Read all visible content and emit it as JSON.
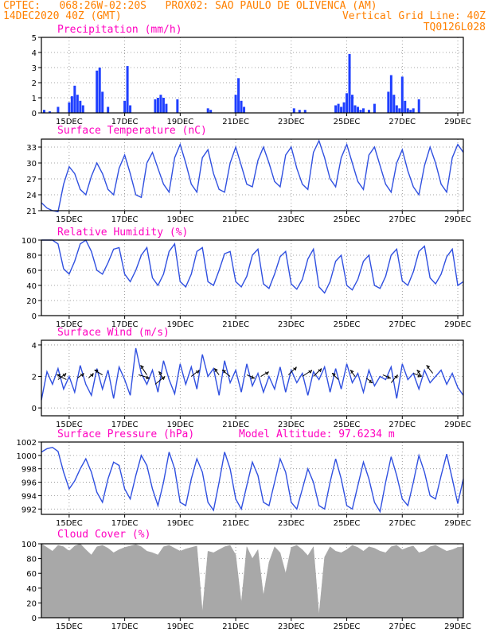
{
  "header": {
    "line1_left": "CPTEC:   068:26W-02:20S   PROX02: SAO PAULO DE OLIVENCA (AM)",
    "line2_left": "14DEC2020 40Z (GMT)",
    "line2_right": "Vertical Grid Line: 40Z",
    "line3_right": "TQ0126L028"
  },
  "x_ticks": [
    "15DEC",
    "17DEC",
    "19DEC",
    "21DEC",
    "23DEC",
    "25DEC",
    "27DEC",
    "29DEC"
  ],
  "colors": {
    "line": "#3050e0",
    "bar": "#1f3fff",
    "cloud": "#a8a8a8",
    "title": "#ff00c0",
    "header": "#ff8000",
    "grid": "#888888",
    "vector": "#000000"
  },
  "chart_data": [
    {
      "id": "precip",
      "type": "bar",
      "title": "Precipitation (mm/h)",
      "ylim": [
        0,
        5
      ],
      "yticks": [
        0,
        1,
        2,
        3,
        4,
        5
      ],
      "x": [
        0.1,
        0.3,
        0.6,
        1.0,
        1.1,
        1.2,
        1.3,
        1.4,
        1.5,
        2.0,
        2.1,
        2.2,
        2.4,
        3.0,
        3.1,
        3.2,
        4.1,
        4.2,
        4.3,
        4.4,
        4.5,
        4.9,
        6.0,
        6.1,
        7.0,
        7.1,
        7.2,
        7.3,
        9.1,
        9.3,
        9.5,
        10.6,
        10.7,
        10.8,
        10.9,
        11.0,
        11.1,
        11.2,
        11.3,
        11.4,
        11.5,
        11.6,
        11.8,
        12.0,
        12.5,
        12.6,
        12.7,
        12.8,
        12.9,
        13.0,
        13.1,
        13.2,
        13.3,
        13.4,
        13.6
      ],
      "values": [
        0.2,
        0.1,
        0.4,
        0.7,
        1.1,
        1.8,
        1.2,
        0.8,
        0.5,
        2.8,
        3.0,
        1.4,
        0.4,
        0.8,
        3.1,
        0.5,
        0.9,
        1.0,
        1.2,
        1.0,
        0.6,
        0.9,
        0.3,
        0.2,
        1.2,
        2.3,
        0.8,
        0.4,
        0.3,
        0.2,
        0.2,
        0.5,
        0.6,
        0.4,
        0.7,
        1.3,
        3.9,
        1.2,
        0.5,
        0.4,
        0.2,
        0.3,
        0.2,
        0.6,
        1.4,
        2.5,
        1.2,
        0.5,
        0.3,
        2.4,
        0.8,
        0.3,
        0.2,
        0.3,
        0.9
      ]
    },
    {
      "id": "temp",
      "type": "line",
      "title": "Surface Temperature (nC)",
      "ylim": [
        21,
        34.5
      ],
      "yticks": [
        21,
        24,
        27,
        30,
        33
      ],
      "x": [
        0,
        0.2,
        0.4,
        0.6,
        0.8,
        1.0,
        1.2,
        1.4,
        1.6,
        1.8,
        2.0,
        2.2,
        2.4,
        2.6,
        2.8,
        3.0,
        3.2,
        3.4,
        3.6,
        3.8,
        4.0,
        4.2,
        4.4,
        4.6,
        4.8,
        5.0,
        5.2,
        5.4,
        5.6,
        5.8,
        6.0,
        6.2,
        6.4,
        6.6,
        6.8,
        7.0,
        7.2,
        7.4,
        7.6,
        7.8,
        8.0,
        8.2,
        8.4,
        8.6,
        8.8,
        9.0,
        9.2,
        9.4,
        9.6,
        9.8,
        10.0,
        10.2,
        10.4,
        10.6,
        10.8,
        11.0,
        11.2,
        11.4,
        11.6,
        11.8,
        12.0,
        12.2,
        12.4,
        12.6,
        12.8,
        13.0,
        13.2,
        13.4,
        13.6,
        13.8,
        14.0,
        14.2,
        14.4,
        14.6,
        14.8,
        15.0,
        15.2
      ],
      "values": [
        22.5,
        21.5,
        21.0,
        20.8,
        26.0,
        29.3,
        28.0,
        25.0,
        24.0,
        27.5,
        30.0,
        28.0,
        25.0,
        24.0,
        29.0,
        31.5,
        28.0,
        24.0,
        23.5,
        30.0,
        32.0,
        29.0,
        26.0,
        24.5,
        31.0,
        33.5,
        30.0,
        26.0,
        24.5,
        31.0,
        32.5,
        28.0,
        25.0,
        24.5,
        30.0,
        33.0,
        29.5,
        26.0,
        25.5,
        30.5,
        33.0,
        30.0,
        26.5,
        25.5,
        31.5,
        33.0,
        29.0,
        26.0,
        25.0,
        32.0,
        34.2,
        31.0,
        27.0,
        25.5,
        31.0,
        33.5,
        30.0,
        26.5,
        25.0,
        31.5,
        33.0,
        29.5,
        26.0,
        24.5,
        30.0,
        32.5,
        28.5,
        25.5,
        24.0,
        29.5,
        33.0,
        30.0,
        26.0,
        24.5,
        31.0,
        33.5,
        32.0
      ]
    },
    {
      "id": "rh",
      "type": "line",
      "title": "Relative Humidity (%)",
      "ylim": [
        0,
        100
      ],
      "yticks": [
        0,
        20,
        40,
        60,
        80,
        100
      ],
      "x": [
        0,
        0.2,
        0.4,
        0.6,
        0.8,
        1.0,
        1.2,
        1.4,
        1.6,
        1.8,
        2.0,
        2.2,
        2.4,
        2.6,
        2.8,
        3.0,
        3.2,
        3.4,
        3.6,
        3.8,
        4.0,
        4.2,
        4.4,
        4.6,
        4.8,
        5.0,
        5.2,
        5.4,
        5.6,
        5.8,
        6.0,
        6.2,
        6.4,
        6.6,
        6.8,
        7.0,
        7.2,
        7.4,
        7.6,
        7.8,
        8.0,
        8.2,
        8.4,
        8.6,
        8.8,
        9.0,
        9.2,
        9.4,
        9.6,
        9.8,
        10.0,
        10.2,
        10.4,
        10.6,
        10.8,
        11.0,
        11.2,
        11.4,
        11.6,
        11.8,
        12.0,
        12.2,
        12.4,
        12.6,
        12.8,
        13.0,
        13.2,
        13.4,
        13.6,
        13.8,
        14.0,
        14.2,
        14.4,
        14.6,
        14.8,
        15.0,
        15.2
      ],
      "values": [
        100,
        100,
        100,
        95,
        62,
        55,
        72,
        95,
        100,
        85,
        60,
        55,
        70,
        88,
        90,
        55,
        45,
        60,
        80,
        90,
        50,
        40,
        55,
        85,
        95,
        45,
        38,
        55,
        85,
        90,
        45,
        40,
        60,
        82,
        85,
        45,
        38,
        52,
        80,
        88,
        42,
        36,
        55,
        78,
        85,
        42,
        35,
        48,
        75,
        88,
        38,
        30,
        45,
        72,
        80,
        40,
        34,
        48,
        72,
        80,
        40,
        36,
        52,
        80,
        88,
        46,
        40,
        58,
        85,
        92,
        50,
        42,
        55,
        78,
        88,
        40,
        45
      ]
    },
    {
      "id": "wind",
      "type": "line",
      "title": "Surface Wind (m/s)",
      "ylim": [
        -0.5,
        4.3
      ],
      "yticks": [
        0,
        2,
        4
      ],
      "x": [
        0,
        0.2,
        0.4,
        0.6,
        0.8,
        1.0,
        1.2,
        1.4,
        1.6,
        1.8,
        2.0,
        2.2,
        2.4,
        2.6,
        2.8,
        3.0,
        3.2,
        3.4,
        3.6,
        3.8,
        4.0,
        4.2,
        4.4,
        4.6,
        4.8,
        5.0,
        5.2,
        5.4,
        5.6,
        5.8,
        6.0,
        6.2,
        6.4,
        6.6,
        6.8,
        7.0,
        7.2,
        7.4,
        7.6,
        7.8,
        8.0,
        8.2,
        8.4,
        8.6,
        8.8,
        9.0,
        9.2,
        9.4,
        9.6,
        9.8,
        10.0,
        10.2,
        10.4,
        10.6,
        10.8,
        11.0,
        11.2,
        11.4,
        11.6,
        11.8,
        12.0,
        12.2,
        12.4,
        12.6,
        12.8,
        13.0,
        13.2,
        13.4,
        13.6,
        13.8,
        14.0,
        14.2,
        14.4,
        14.6,
        14.8,
        15.0,
        15.2
      ],
      "values": [
        0.5,
        2.3,
        1.5,
        2.5,
        1.2,
        2.0,
        1.0,
        2.7,
        1.5,
        0.8,
        2.5,
        1.2,
        2.4,
        0.6,
        2.6,
        1.8,
        0.8,
        3.8,
        2.2,
        1.5,
        2.4,
        1.0,
        3.0,
        1.8,
        0.9,
        2.8,
        1.5,
        2.6,
        1.2,
        3.4,
        2.0,
        2.5,
        0.8,
        3.0,
        1.6,
        2.4,
        1.0,
        2.8,
        1.4,
        2.2,
        1.0,
        2.0,
        1.2,
        2.6,
        1.0,
        2.4,
        1.6,
        2.2,
        0.8,
        2.3,
        1.8,
        2.6,
        1.0,
        2.5,
        1.2,
        2.8,
        1.6,
        2.2,
        1.0,
        2.4,
        1.4,
        2.0,
        1.8,
        2.6,
        0.6,
        2.8,
        1.8,
        2.2,
        1.2,
        2.4,
        1.6,
        2.0,
        2.4,
        1.5,
        2.2,
        1.3,
        0.8
      ],
      "vectors": [
        {
          "x": 0.6,
          "y": 1.8,
          "dx": 10,
          "dy": -8
        },
        {
          "x": 0.9,
          "y": 1.8,
          "dx": -12,
          "dy": -6
        },
        {
          "x": 1.3,
          "y": 1.9,
          "dx": 8,
          "dy": -6
        },
        {
          "x": 1.7,
          "y": 1.9,
          "dx": 6,
          "dy": -6
        },
        {
          "x": 2.2,
          "y": 2.1,
          "dx": -10,
          "dy": -6
        },
        {
          "x": 3.5,
          "y": 2.1,
          "dx": 14,
          "dy": 4
        },
        {
          "x": 3.8,
          "y": 2.1,
          "dx": -8,
          "dy": -12
        },
        {
          "x": 4.1,
          "y": 1.5,
          "dx": 12,
          "dy": -10
        },
        {
          "x": 4.4,
          "y": 1.8,
          "dx": -6,
          "dy": -10
        },
        {
          "x": 5.4,
          "y": 2.0,
          "dx": 10,
          "dy": -8
        },
        {
          "x": 6.4,
          "y": 2.1,
          "dx": -6,
          "dy": -8
        },
        {
          "x": 6.8,
          "y": 2.0,
          "dx": -10,
          "dy": -8
        },
        {
          "x": 7.4,
          "y": 2.1,
          "dx": 10,
          "dy": 4
        },
        {
          "x": 7.9,
          "y": 2.0,
          "dx": 10,
          "dy": -6
        },
        {
          "x": 8.9,
          "y": 2.1,
          "dx": 10,
          "dy": -10
        },
        {
          "x": 9.4,
          "y": 2.0,
          "dx": 12,
          "dy": -8
        },
        {
          "x": 9.8,
          "y": 2.0,
          "dx": 10,
          "dy": -10
        },
        {
          "x": 10.7,
          "y": 1.8,
          "dx": -8,
          "dy": -8
        },
        {
          "x": 11.3,
          "y": 2.0,
          "dx": -6,
          "dy": -8
        },
        {
          "x": 11.7,
          "y": 1.9,
          "dx": 8,
          "dy": 6
        },
        {
          "x": 12.3,
          "y": 2.1,
          "dx": 10,
          "dy": 4
        },
        {
          "x": 12.6,
          "y": 1.6,
          "dx": 8,
          "dy": -10
        },
        {
          "x": 13.4,
          "y": 2.2,
          "dx": 10,
          "dy": 4
        },
        {
          "x": 13.7,
          "y": 2.0,
          "dx": -6,
          "dy": -8
        },
        {
          "x": 14.1,
          "y": 2.2,
          "dx": -8,
          "dy": -10
        }
      ]
    },
    {
      "id": "pres",
      "type": "line",
      "title": "Surface Pressure (hPa)",
      "annotation": "Model Altitude: 97.6234 m",
      "ylim": [
        991.2,
        1002
      ],
      "yticks": [
        992,
        994,
        996,
        998,
        1000,
        1002
      ],
      "x": [
        0,
        0.2,
        0.4,
        0.6,
        0.8,
        1.0,
        1.2,
        1.4,
        1.6,
        1.8,
        2.0,
        2.2,
        2.4,
        2.6,
        2.8,
        3.0,
        3.2,
        3.4,
        3.6,
        3.8,
        4.0,
        4.2,
        4.4,
        4.6,
        4.8,
        5.0,
        5.2,
        5.4,
        5.6,
        5.8,
        6.0,
        6.2,
        6.4,
        6.6,
        6.8,
        7.0,
        7.2,
        7.4,
        7.6,
        7.8,
        8.0,
        8.2,
        8.4,
        8.6,
        8.8,
        9.0,
        9.2,
        9.4,
        9.6,
        9.8,
        10.0,
        10.2,
        10.4,
        10.6,
        10.8,
        11.0,
        11.2,
        11.4,
        11.6,
        11.8,
        12.0,
        12.2,
        12.4,
        12.6,
        12.8,
        13.0,
        13.2,
        13.4,
        13.6,
        13.8,
        14.0,
        14.2,
        14.4,
        14.6,
        14.8,
        15.0,
        15.2
      ],
      "values": [
        1000.5,
        1001.0,
        1001.2,
        1000.6,
        997.5,
        995.0,
        996.2,
        998.0,
        999.5,
        997.5,
        994.5,
        993.0,
        996.5,
        999.0,
        998.5,
        995.0,
        993.5,
        997.0,
        1000.0,
        998.5,
        995.0,
        992.5,
        996.0,
        1000.5,
        998.0,
        993.0,
        992.5,
        996.5,
        999.5,
        997.5,
        993.0,
        991.8,
        996.0,
        1000.5,
        998.0,
        993.5,
        992.0,
        995.5,
        999.0,
        997.0,
        993.0,
        992.5,
        996.0,
        999.5,
        997.5,
        993.0,
        992.0,
        995.0,
        998.0,
        996.0,
        992.5,
        992.0,
        996.0,
        999.5,
        996.5,
        992.5,
        992.0,
        995.5,
        999.0,
        996.5,
        993.0,
        991.6,
        996.0,
        999.8,
        997.0,
        993.5,
        992.5,
        996.0,
        1000.0,
        997.5,
        994.0,
        993.5,
        997.0,
        1000.2,
        996.5,
        992.8,
        996.5
      ]
    },
    {
      "id": "cloud",
      "type": "area",
      "title": "Cloud Cover (%)",
      "ylim": [
        0,
        100
      ],
      "yticks": [
        0,
        20,
        40,
        60,
        80,
        100
      ],
      "x": [
        0,
        0.2,
        0.4,
        0.6,
        0.8,
        1.0,
        1.2,
        1.4,
        1.6,
        1.8,
        2.0,
        2.2,
        2.4,
        2.6,
        2.8,
        3.0,
        3.2,
        3.4,
        3.6,
        3.8,
        4.0,
        4.2,
        4.4,
        4.6,
        4.8,
        5.0,
        5.2,
        5.4,
        5.6,
        5.8,
        6.0,
        6.2,
        6.4,
        6.6,
        6.8,
        7.0,
        7.2,
        7.4,
        7.6,
        7.8,
        8.0,
        8.2,
        8.4,
        8.6,
        8.8,
        9.0,
        9.2,
        9.4,
        9.6,
        9.8,
        10.0,
        10.2,
        10.4,
        10.6,
        10.8,
        11.0,
        11.2,
        11.4,
        11.6,
        11.8,
        12.0,
        12.2,
        12.4,
        12.6,
        12.8,
        13.0,
        13.2,
        13.4,
        13.6,
        13.8,
        14.0,
        14.2,
        14.4,
        14.6,
        14.8,
        15.0,
        15.2
      ],
      "values": [
        100,
        95,
        90,
        98,
        96,
        90,
        97,
        100,
        92,
        85,
        96,
        98,
        94,
        88,
        92,
        95,
        97,
        99,
        96,
        90,
        88,
        85,
        96,
        98,
        94,
        90,
        93,
        95,
        97,
        8,
        90,
        88,
        92,
        96,
        98,
        85,
        20,
        96,
        80,
        92,
        30,
        75,
        96,
        88,
        60,
        95,
        98,
        92,
        84,
        96,
        4,
        82,
        96,
        90,
        88,
        92,
        98,
        95,
        90,
        96,
        94,
        90,
        88,
        96,
        98,
        92,
        95,
        97,
        88,
        90,
        96,
        98,
        94,
        90,
        92,
        95,
        96
      ]
    }
  ]
}
